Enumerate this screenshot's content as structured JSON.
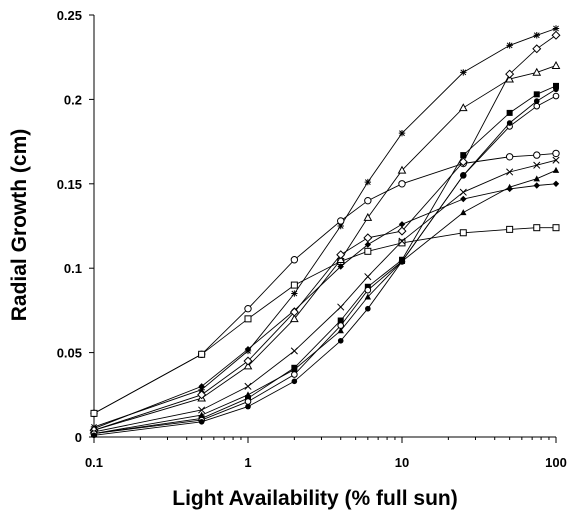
{
  "chart_data": {
    "type": "line",
    "xlabel": "Light Availability (% full sun)",
    "ylabel": "Radial Growth (cm)",
    "x_scale": "log",
    "xlim": [
      0.1,
      100
    ],
    "ylim": [
      0,
      0.25
    ],
    "x_ticks": [
      "0.1",
      "1",
      "10",
      "100"
    ],
    "y_ticks": [
      "0",
      "0.05",
      "0.1",
      "0.15",
      "0.2",
      "0.25"
    ],
    "grid": false,
    "legend": "none",
    "x": [
      0.1,
      0.5,
      1,
      2,
      4,
      6,
      10,
      25,
      50,
      75,
      100
    ],
    "series": [
      {
        "marker": "asterisk",
        "values": [
          0.006,
          0.028,
          0.051,
          0.085,
          0.125,
          0.151,
          0.18,
          0.216,
          0.232,
          0.238,
          0.242
        ]
      },
      {
        "marker": "open-circle",
        "values": [
          0.014,
          0.049,
          0.076,
          0.105,
          0.128,
          0.14,
          0.15,
          0.162,
          0.166,
          0.167,
          0.168
        ]
      },
      {
        "marker": "open-square",
        "values": [
          0.014,
          0.049,
          0.07,
          0.09,
          0.104,
          0.11,
          0.115,
          0.121,
          0.123,
          0.124,
          0.124
        ]
      },
      {
        "marker": "filled-diamond",
        "values": [
          0.005,
          0.03,
          0.052,
          0.075,
          0.101,
          0.114,
          0.126,
          0.141,
          0.147,
          0.149,
          0.15
        ]
      },
      {
        "marker": "open-triangle",
        "values": [
          0.004,
          0.023,
          0.042,
          0.07,
          0.105,
          0.13,
          0.158,
          0.195,
          0.212,
          0.216,
          0.22
        ]
      },
      {
        "marker": "open-diamond",
        "values": [
          0.004,
          0.025,
          0.045,
          0.074,
          0.108,
          0.118,
          0.122,
          0.163,
          0.215,
          0.23,
          0.238
        ]
      },
      {
        "marker": "x-mark",
        "values": [
          0.003,
          0.016,
          0.03,
          0.051,
          0.077,
          0.095,
          0.116,
          0.145,
          0.157,
          0.161,
          0.164
        ]
      },
      {
        "marker": "filled-triangle",
        "values": [
          0.002,
          0.013,
          0.025,
          0.04,
          0.063,
          0.083,
          0.104,
          0.133,
          0.148,
          0.153,
          0.158
        ]
      },
      {
        "marker": "filled-square",
        "values": [
          0.002,
          0.011,
          0.023,
          0.041,
          0.069,
          0.089,
          0.105,
          0.167,
          0.192,
          0.203,
          0.208
        ]
      },
      {
        "marker": "open-circle-small",
        "values": [
          0.002,
          0.01,
          0.021,
          0.037,
          0.066,
          0.087,
          0.104,
          0.155,
          0.184,
          0.196,
          0.202
        ]
      },
      {
        "marker": "filled-circle",
        "values": [
          0.001,
          0.009,
          0.018,
          0.033,
          0.057,
          0.076,
          0.104,
          0.155,
          0.186,
          0.199,
          0.206
        ]
      }
    ]
  }
}
